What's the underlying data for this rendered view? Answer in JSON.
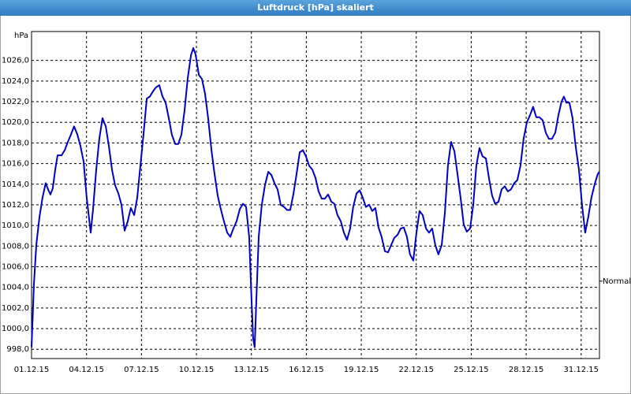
{
  "chart_data": {
    "type": "line",
    "title": "Luftdruck [hPa] skaliert",
    "ylabel": "hPa",
    "color": "#0000c0",
    "grid": true,
    "xlim": [
      0,
      31
    ],
    "ylim": [
      997.1,
      1028.8
    ],
    "xticks": [
      {
        "value": 0,
        "label": "01.12.15"
      },
      {
        "value": 3,
        "label": "04.12.15"
      },
      {
        "value": 6,
        "label": "07.12.15"
      },
      {
        "value": 9,
        "label": "10.12.15"
      },
      {
        "value": 12,
        "label": "13.12.15"
      },
      {
        "value": 15,
        "label": "16.12.15"
      },
      {
        "value": 18,
        "label": "19.12.15"
      },
      {
        "value": 21,
        "label": "22.12.15"
      },
      {
        "value": 24,
        "label": "25.12.15"
      },
      {
        "value": 27,
        "label": "28.12.15"
      },
      {
        "value": 30,
        "label": "31.12.15"
      }
    ],
    "yticks": [
      {
        "value": 998,
        "label": "998,0"
      },
      {
        "value": 1000,
        "label": "1000,0"
      },
      {
        "value": 1002,
        "label": "1002,0"
      },
      {
        "value": 1004,
        "label": "1004,0"
      },
      {
        "value": 1006,
        "label": "1006,0"
      },
      {
        "value": 1008,
        "label": "1008,0"
      },
      {
        "value": 1010,
        "label": "1010,0"
      },
      {
        "value": 1012,
        "label": "1012,0"
      },
      {
        "value": 1014,
        "label": "1014,0"
      },
      {
        "value": 1016,
        "label": "1016,0"
      },
      {
        "value": 1018,
        "label": "1018,0"
      },
      {
        "value": 1020,
        "label": "1020,0"
      },
      {
        "value": 1022,
        "label": "1022,0"
      },
      {
        "value": 1024,
        "label": "1024,0"
      },
      {
        "value": 1026,
        "label": "1026,0"
      }
    ],
    "reference": {
      "value": 1004.6,
      "label": "Normal"
    },
    "x": [
      0,
      0.13,
      0.26,
      0.43,
      0.6,
      0.77,
      0.9,
      1.03,
      1.16,
      1.29,
      1.42,
      1.64,
      1.81,
      1.98,
      2.15,
      2.32,
      2.5,
      2.67,
      2.84,
      3.01,
      3.23,
      3.36,
      3.53,
      3.7,
      3.87,
      4.05,
      4.22,
      4.39,
      4.56,
      4.74,
      4.91,
      5.08,
      5.25,
      5.42,
      5.6,
      5.77,
      5.94,
      6.11,
      6.29,
      6.46,
      6.63,
      6.8,
      6.97,
      7.15,
      7.32,
      7.49,
      7.66,
      7.84,
      8.01,
      8.18,
      8.35,
      8.52,
      8.7,
      8.83,
      8.95,
      9.13,
      9.3,
      9.47,
      9.64,
      9.82,
      9.99,
      10.16,
      10.33,
      10.5,
      10.68,
      10.85,
      11.02,
      11.19,
      11.37,
      11.54,
      11.71,
      11.88,
      12.01,
      12.1,
      12.18,
      12.27,
      12.4,
      12.57,
      12.74,
      12.92,
      13.09,
      13.26,
      13.43,
      13.6,
      13.78,
      13.95,
      14.12,
      14.29,
      14.46,
      14.64,
      14.81,
      14.98,
      15.15,
      15.33,
      15.5,
      15.67,
      15.84,
      16.01,
      16.19,
      16.36,
      16.53,
      16.7,
      16.88,
      17.05,
      17.22,
      17.39,
      17.56,
      17.74,
      17.91,
      18.08,
      18.25,
      18.43,
      18.6,
      18.77,
      18.94,
      19.11,
      19.29,
      19.46,
      19.63,
      19.8,
      19.98,
      20.15,
      20.32,
      20.49,
      20.66,
      20.84,
      21.01,
      21.18,
      21.35,
      21.53,
      21.7,
      21.87,
      22.04,
      22.21,
      22.39,
      22.56,
      22.73,
      22.9,
      23.08,
      23.25,
      23.42,
      23.59,
      23.76,
      23.94,
      24.11,
      24.28,
      24.45,
      24.62,
      24.8,
      24.97,
      25.14,
      25.31,
      25.49,
      25.66,
      25.83,
      26,
      26.17,
      26.35,
      26.52,
      26.69,
      26.86,
      27.04,
      27.21,
      27.38,
      27.55,
      27.72,
      27.9,
      28.07,
      28.24,
      28.41,
      28.59,
      28.76,
      28.93,
      29.06,
      29.19,
      29.36,
      29.53,
      29.7,
      29.88,
      30.05,
      30.22,
      30.39,
      30.56,
      30.74,
      30.91,
      31
    ],
    "values": [
      998.2,
      1004.3,
      1008.1,
      1010.8,
      1012.7,
      1014.1,
      1013.5,
      1013.0,
      1013.6,
      1015.4,
      1016.8,
      1016.8,
      1017.3,
      1018.1,
      1018.8,
      1019.6,
      1018.8,
      1017.7,
      1016.2,
      1012.7,
      1009.3,
      1011.6,
      1015.4,
      1018.4,
      1020.4,
      1019.6,
      1017.7,
      1015.4,
      1013.9,
      1013.1,
      1012.0,
      1009.5,
      1010.4,
      1011.7,
      1011.0,
      1012.7,
      1015.8,
      1018.8,
      1022.3,
      1022.5,
      1023.0,
      1023.4,
      1023.6,
      1022.5,
      1021.9,
      1020.4,
      1018.8,
      1017.9,
      1017.9,
      1018.8,
      1021.1,
      1024.2,
      1026.5,
      1027.2,
      1026.6,
      1024.6,
      1024.2,
      1022.8,
      1020.4,
      1017.3,
      1015.0,
      1012.9,
      1011.6,
      1010.4,
      1009.3,
      1008.9,
      1009.7,
      1010.4,
      1011.6,
      1012.1,
      1011.8,
      1008.9,
      1002.8,
      999.0,
      998.2,
      1002.8,
      1008.9,
      1012.0,
      1013.9,
      1015.2,
      1014.9,
      1014.1,
      1013.5,
      1012.0,
      1011.8,
      1011.5,
      1011.5,
      1013.0,
      1014.9,
      1017.1,
      1017.3,
      1016.7,
      1015.8,
      1015.4,
      1014.6,
      1013.3,
      1012.6,
      1012.6,
      1013.0,
      1012.3,
      1012.1,
      1011.0,
      1010.4,
      1009.3,
      1008.6,
      1009.7,
      1011.8,
      1013.1,
      1013.4,
      1012.7,
      1011.8,
      1012.0,
      1011.4,
      1011.7,
      1009.8,
      1008.9,
      1007.5,
      1007.4,
      1008.1,
      1008.8,
      1009.1,
      1009.7,
      1009.8,
      1008.9,
      1007.2,
      1006.6,
      1009.3,
      1011.4,
      1011.0,
      1009.7,
      1009.3,
      1009.7,
      1008.1,
      1007.2,
      1008.1,
      1011.2,
      1015.8,
      1018.1,
      1017.2,
      1015.0,
      1012.7,
      1010.1,
      1009.4,
      1009.7,
      1012.0,
      1015.8,
      1017.5,
      1016.7,
      1016.5,
      1014.6,
      1012.9,
      1012.1,
      1012.3,
      1013.5,
      1013.8,
      1013.3,
      1013.5,
      1014.1,
      1014.4,
      1015.8,
      1018.4,
      1020.0,
      1020.7,
      1021.5,
      1020.5,
      1020.5,
      1020.2,
      1019.0,
      1018.4,
      1018.4,
      1019.0,
      1020.7,
      1022.0,
      1022.5,
      1021.9,
      1021.9,
      1020.4,
      1017.7,
      1015.4,
      1012.0,
      1009.3,
      1010.8,
      1012.7,
      1014.0,
      1015.0,
      1015.2
    ]
  }
}
